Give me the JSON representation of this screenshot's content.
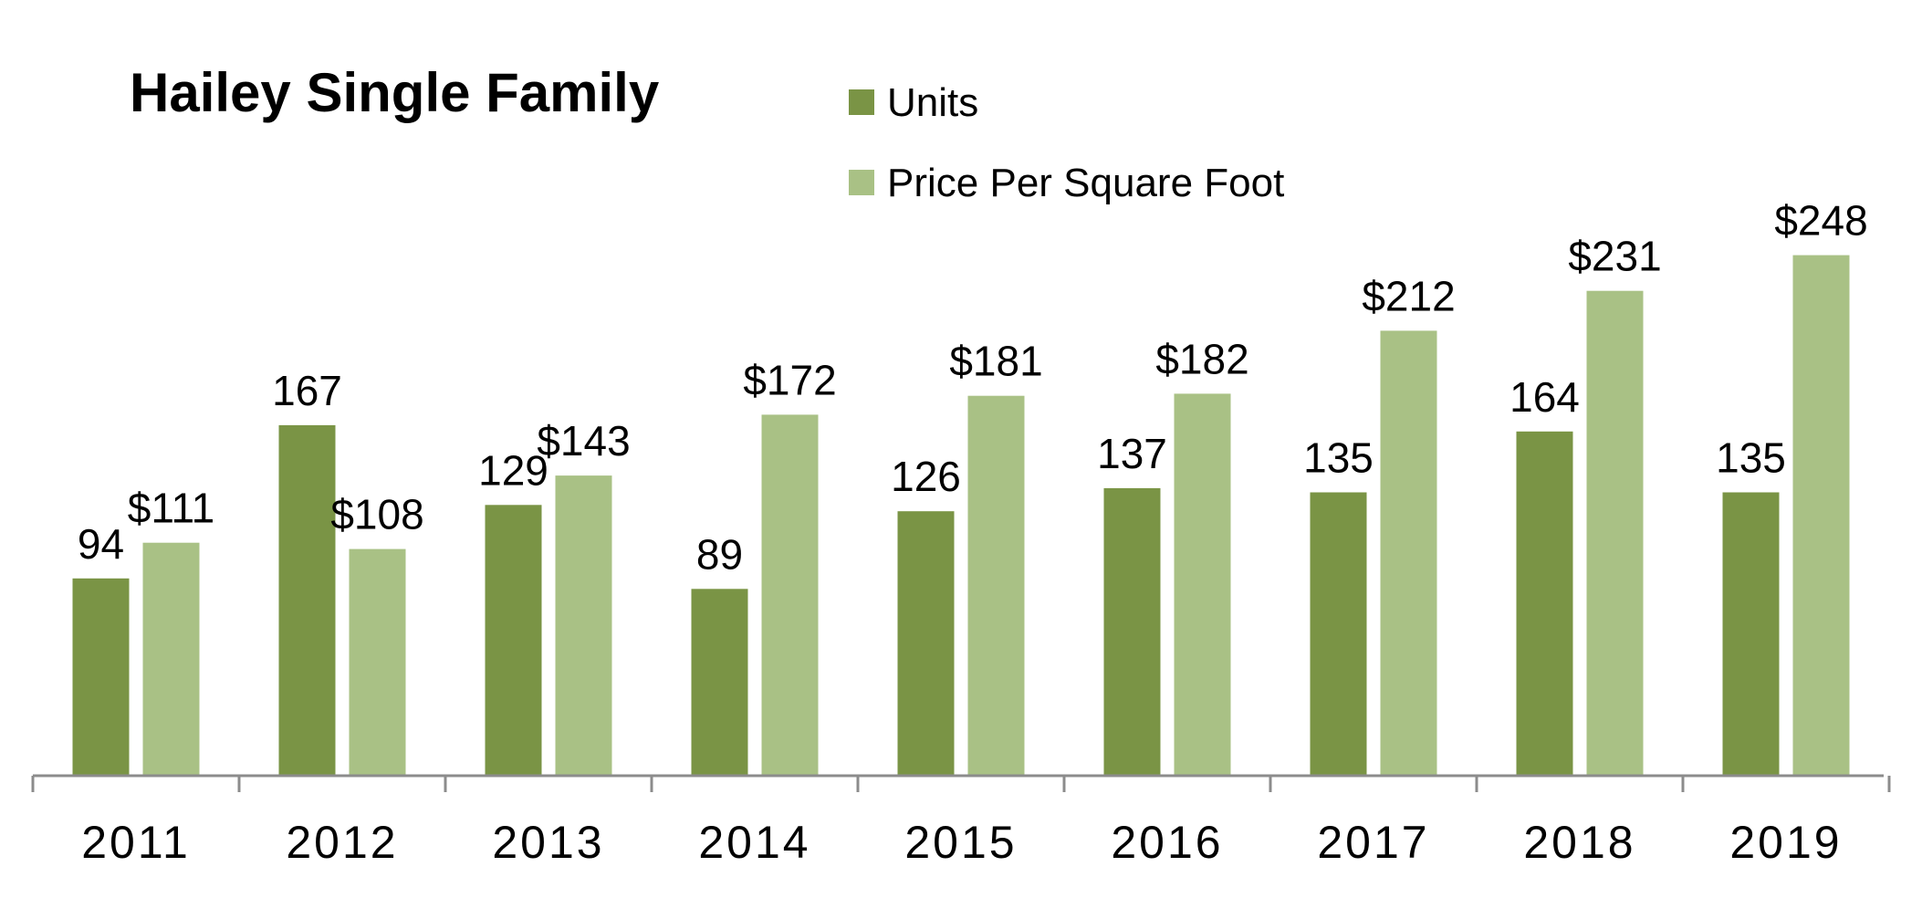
{
  "chart_data": {
    "type": "bar",
    "title": "Hailey Single Family",
    "xlabel": "",
    "ylabel": "",
    "grid": false,
    "legend_position": "top-center",
    "categories": [
      "2011",
      "2012",
      "2013",
      "2014",
      "2015",
      "2016",
      "2017",
      "2018",
      "2019"
    ],
    "series": [
      {
        "name": "Units",
        "color": "#7a9445",
        "values": [
          94,
          167,
          129,
          89,
          126,
          137,
          135,
          164,
          135
        ],
        "labels": [
          "94",
          "167",
          "129",
          "89",
          "126",
          "137",
          "135",
          "164",
          "135"
        ]
      },
      {
        "name": "Price Per Square Foot",
        "color": "#a9c185",
        "values": [
          111,
          108,
          143,
          172,
          181,
          182,
          212,
          231,
          248
        ],
        "labels": [
          "$111",
          "$108",
          "$143",
          "$172",
          "$181",
          "$182",
          "$212",
          "$231",
          "$248"
        ]
      }
    ]
  }
}
